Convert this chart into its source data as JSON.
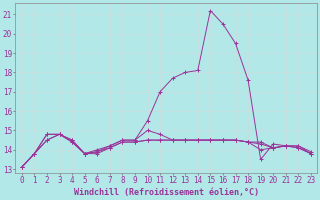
{
  "x": [
    0,
    1,
    2,
    3,
    4,
    5,
    6,
    7,
    8,
    9,
    10,
    11,
    12,
    13,
    14,
    15,
    16,
    17,
    18,
    19,
    20,
    21,
    22,
    23
  ],
  "line1": [
    13.1,
    13.8,
    14.8,
    14.8,
    14.4,
    13.8,
    13.8,
    14.1,
    14.4,
    14.4,
    14.5,
    14.5,
    14.5,
    14.5,
    14.5,
    14.5,
    14.5,
    14.5,
    14.4,
    14.4,
    14.1,
    14.2,
    14.1,
    13.8
  ],
  "line2": [
    13.1,
    13.8,
    14.8,
    14.8,
    14.5,
    13.8,
    13.9,
    14.1,
    14.4,
    14.4,
    14.5,
    14.5,
    14.5,
    14.5,
    14.5,
    14.5,
    14.5,
    14.5,
    14.4,
    14.3,
    14.1,
    14.2,
    14.1,
    13.8
  ],
  "line3": [
    13.1,
    13.8,
    14.5,
    14.8,
    14.5,
    13.8,
    13.9,
    14.2,
    14.5,
    14.5,
    15.0,
    14.8,
    14.5,
    14.5,
    14.5,
    14.5,
    14.5,
    14.5,
    14.4,
    14.0,
    14.1,
    14.2,
    14.2,
    13.9
  ],
  "line4": [
    13.1,
    13.8,
    14.5,
    14.8,
    14.4,
    13.8,
    14.0,
    14.2,
    14.5,
    14.5,
    15.5,
    17.0,
    17.7,
    18.0,
    18.1,
    21.2,
    20.5,
    19.5,
    17.6,
    13.5,
    14.3,
    14.2,
    14.2,
    13.8
  ],
  "line_color": "#993399",
  "bg_color": "#b3e8e8",
  "grid_color": "#c8dede",
  "xlabel": "Windchill (Refroidissement éolien,°C)",
  "ylabel_ticks": [
    13,
    14,
    15,
    16,
    17,
    18,
    19,
    20,
    21
  ],
  "xlim": [
    -0.5,
    23.5
  ],
  "ylim": [
    12.8,
    21.6
  ],
  "xlabel_fontsize": 6,
  "tick_fontsize": 5.5
}
